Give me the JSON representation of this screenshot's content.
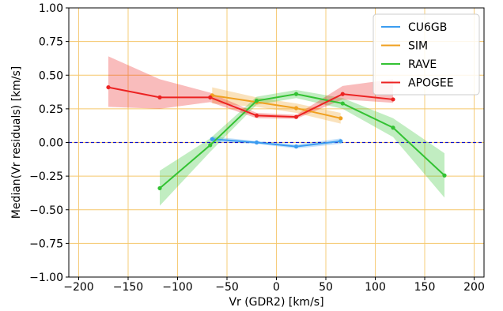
{
  "chart_data": {
    "type": "line",
    "title": "",
    "xlabel": "Vr (GDR2) [km/s]",
    "ylabel": "Median(Vr residuals) [km/s]",
    "xlim": [
      -210,
      210
    ],
    "ylim": [
      -1.0,
      1.0
    ],
    "x_ticks": [
      -200,
      -150,
      -100,
      -50,
      0,
      50,
      100,
      150,
      200
    ],
    "x_tick_labels": [
      "−200",
      "−150",
      "−100",
      "−50",
      "0",
      "50",
      "100",
      "150",
      "200"
    ],
    "y_ticks": [
      -1.0,
      -0.75,
      -0.5,
      -0.25,
      0.0,
      0.25,
      0.5,
      0.75,
      1.0
    ],
    "y_tick_labels": [
      "−1.00",
      "−0.75",
      "−0.50",
      "−0.25",
      "0.00",
      "0.25",
      "0.50",
      "0.75",
      "1.00"
    ],
    "grid": true,
    "grid_color": "#f5c76b",
    "zero_line_color": "#1010c8",
    "legend_position": "top-right",
    "series": [
      {
        "name": "CU6GB",
        "color": "#3b9cf0",
        "x": [
          -65,
          -20,
          20,
          65
        ],
        "y": [
          0.025,
          0.0,
          -0.03,
          0.01
        ],
        "lower": [
          0.005,
          -0.01,
          -0.045,
          -0.01
        ],
        "upper": [
          0.045,
          0.01,
          -0.015,
          0.03
        ]
      },
      {
        "name": "SIM",
        "color": "#f0a020",
        "x": [
          -65,
          -20,
          20,
          65
        ],
        "y": [
          0.35,
          0.3,
          0.255,
          0.18
        ],
        "lower": [
          0.29,
          0.265,
          0.22,
          0.14
        ],
        "upper": [
          0.41,
          0.335,
          0.29,
          0.22
        ]
      },
      {
        "name": "RAVE",
        "color": "#33c233",
        "x": [
          -118,
          -67,
          -20,
          20,
          67,
          118,
          170
        ],
        "y": [
          -0.34,
          -0.02,
          0.31,
          0.36,
          0.29,
          0.11,
          -0.245
        ],
        "lower": [
          -0.47,
          -0.07,
          0.28,
          0.33,
          0.25,
          0.04,
          -0.41
        ],
        "upper": [
          -0.21,
          0.03,
          0.34,
          0.39,
          0.33,
          0.18,
          -0.08
        ]
      },
      {
        "name": "APOGEE",
        "color": "#ec2222",
        "x": [
          -170,
          -118,
          -67,
          -20,
          20,
          67,
          118
        ],
        "y": [
          0.41,
          0.335,
          0.335,
          0.2,
          0.19,
          0.36,
          0.32
        ],
        "lower": [
          0.265,
          0.25,
          0.3,
          0.18,
          0.175,
          0.32,
          0.295
        ],
        "upper": [
          0.64,
          0.47,
          0.37,
          0.22,
          0.205,
          0.42,
          0.47
        ]
      }
    ]
  }
}
